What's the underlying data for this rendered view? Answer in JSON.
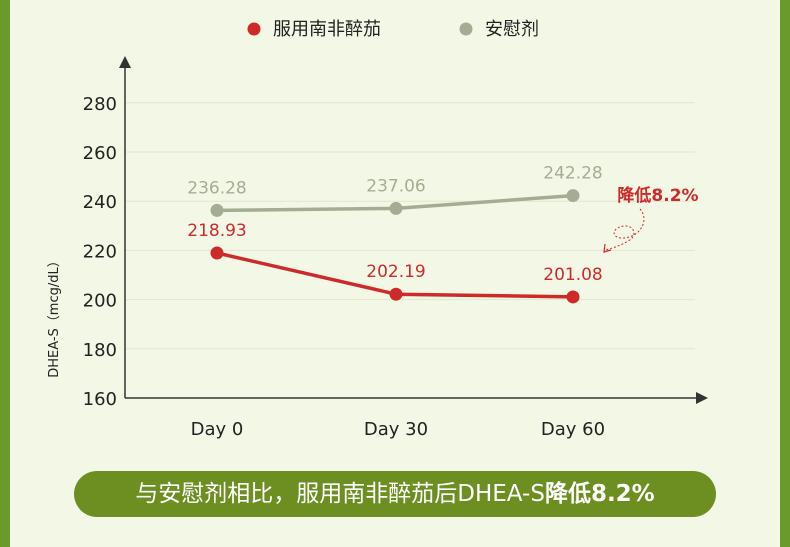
{
  "chart_data": {
    "type": "line",
    "categories": [
      "Day 0",
      "Day 30",
      "Day 60"
    ],
    "series": [
      {
        "name": "服用南非醉茄",
        "color": "#cf2a2a",
        "values": [
          218.93,
          202.19,
          201.08
        ],
        "labels": [
          "218.93",
          "202.19",
          "201.08"
        ]
      },
      {
        "name": "安慰剂",
        "color": "#a4ad94",
        "values": [
          236.28,
          237.06,
          242.28
        ],
        "labels": [
          "236.28",
          "237.06",
          "242.28"
        ]
      }
    ],
    "ylabel": "DHEA-S（mcg/dL）",
    "yticks": [
      160,
      180,
      200,
      220,
      240,
      260,
      280
    ],
    "ylim": [
      160,
      300
    ],
    "grid": true,
    "legend": "top",
    "annotation": "降低8.2%"
  },
  "footer": {
    "caption_prefix": "与安慰剂相比，服用南非醉茄后DHEA-S",
    "caption_highlight": "降低8.2%"
  },
  "colors": {
    "frame": "#6b9a2c",
    "panel": "#f3f8e6",
    "caption_bg": "#6d8f22",
    "axis": "#333333"
  }
}
